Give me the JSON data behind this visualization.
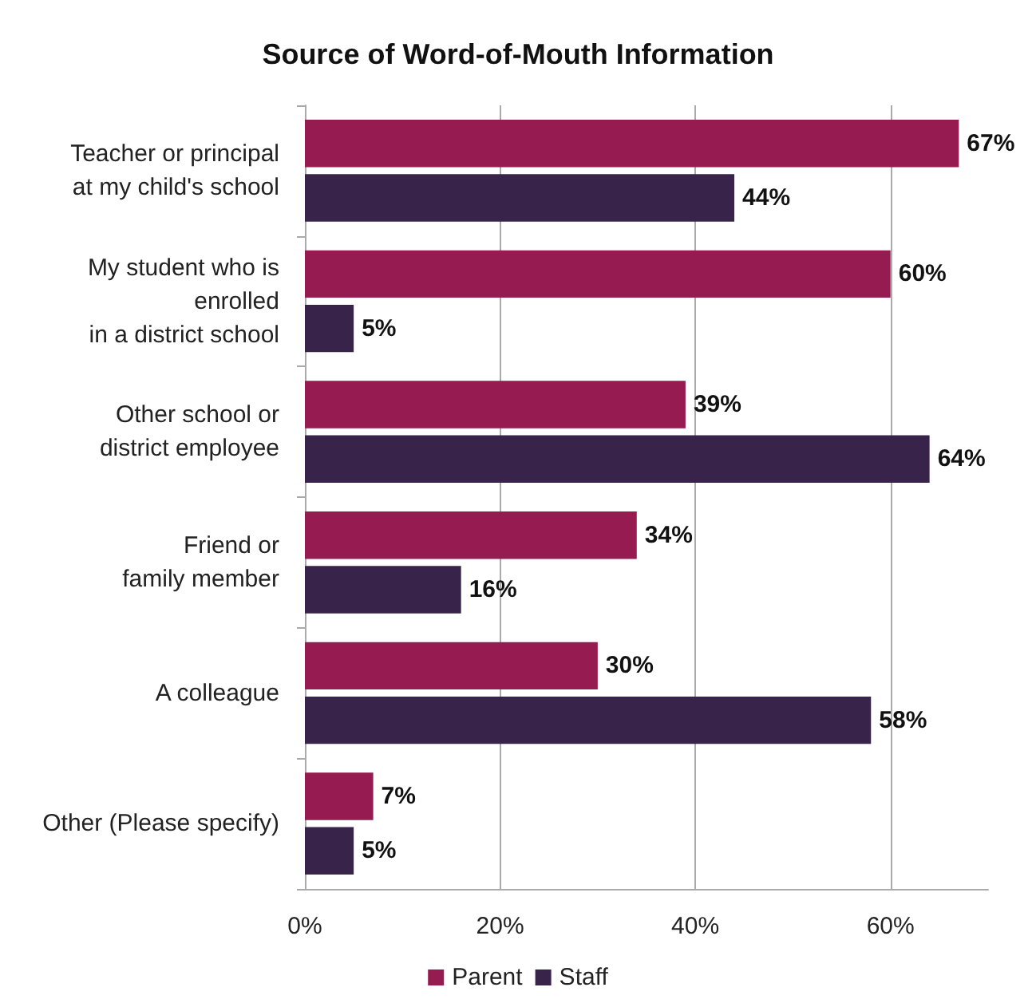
{
  "chart_data": {
    "type": "bar",
    "orientation": "horizontal",
    "title": "Source of Word-of-Mouth Information",
    "categories": [
      "Teacher or principal\nat my child's school",
      "My student who is\nenrolled\nin a district school",
      "Other school or\ndistrict employee",
      "Friend or\nfamily member",
      "A colleague",
      "Other (Please specify)"
    ],
    "series": [
      {
        "name": "Parent",
        "color": "#961b50",
        "values": [
          67,
          60,
          39,
          34,
          30,
          7
        ],
        "value_labels": [
          "67%",
          "60%",
          "39%",
          "34%",
          "30%",
          "7%"
        ]
      },
      {
        "name": "Staff",
        "color": "#38234a",
        "values": [
          44,
          5,
          64,
          16,
          58,
          5
        ],
        "value_labels": [
          "44%",
          "5%",
          "64%",
          "16%",
          "58%",
          "5%"
        ]
      }
    ],
    "xlim": [
      0,
      70
    ],
    "xticks": [
      {
        "value": 0,
        "label": "0%"
      },
      {
        "value": 20,
        "label": "20%"
      },
      {
        "value": 40,
        "label": "40%"
      },
      {
        "value": 60,
        "label": "60%"
      }
    ],
    "grid": "x",
    "legend": "bottom"
  }
}
